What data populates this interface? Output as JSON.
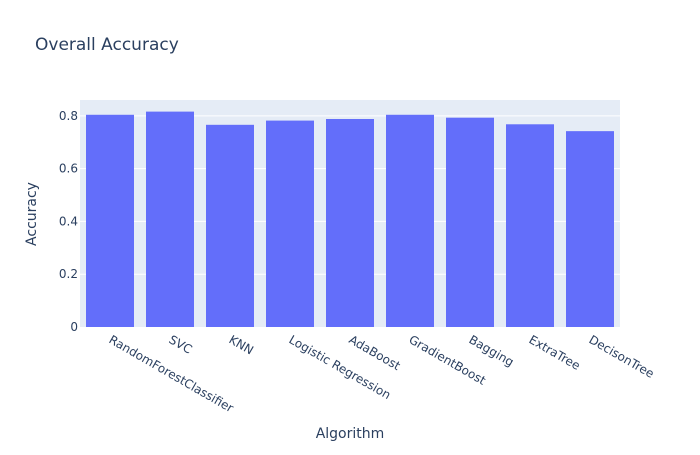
{
  "colors": {
    "plot_background": "#e5ecf6",
    "bar": "#636efa",
    "gridline": "#ffffff",
    "text": "#2a3f5f"
  },
  "chart_data": {
    "type": "bar",
    "title": "Overall Accuracy",
    "xlabel": "Algorithm",
    "ylabel": "Accuracy",
    "categories": [
      "RandomForestClassifier",
      "SVC",
      "KNN",
      "Logistic Regression",
      "AdaBoost",
      "GradientBoost",
      "Bagging",
      "ExtraTree",
      "DecisonTree"
    ],
    "values": [
      0.804,
      0.816,
      0.766,
      0.782,
      0.788,
      0.804,
      0.793,
      0.768,
      0.742
    ],
    "ylim": [
      0,
      0.86
    ],
    "yticks": [
      0,
      0.2,
      0.4,
      0.6,
      0.8
    ],
    "ytick_labels": [
      "0",
      "0.2",
      "0.4",
      "0.6",
      "0.8"
    ],
    "grid": true,
    "legend": false
  }
}
